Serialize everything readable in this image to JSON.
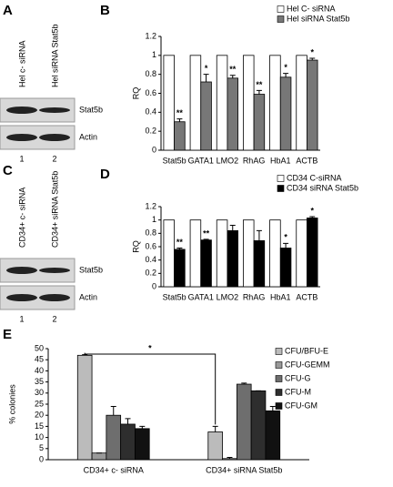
{
  "blots": [
    {
      "panel": "A",
      "lanes": [
        "Hel c- siRNA",
        "Hel siRNA Stat5b"
      ],
      "bands": [
        "Stat5b",
        "Actin"
      ],
      "lane_numbers": [
        "1",
        "2"
      ]
    },
    {
      "panel": "C",
      "lanes": [
        "CD34+ c- siRNA",
        "CD34+ siRNA Stat5b"
      ],
      "bands": [
        "Stat5b",
        "Actin"
      ],
      "lane_numbers": [
        "1",
        "2"
      ]
    }
  ],
  "chart_data": [
    {
      "panel": "B",
      "type": "bar",
      "ylabel": "RQ",
      "categories": [
        "Stat5b",
        "GATA1",
        "LMO2",
        "RhAG",
        "HbA1",
        "ACTB"
      ],
      "series": [
        {
          "name": "Hel C- siRNA",
          "color": "#ffffff",
          "values": [
            1,
            1,
            1,
            1,
            1,
            1
          ]
        },
        {
          "name": "Hel siRNA Stat5b",
          "color": "#777777",
          "values": [
            0.3,
            0.72,
            0.76,
            0.59,
            0.77,
            0.95
          ],
          "errors": [
            0.03,
            0.08,
            0.03,
            0.04,
            0.04,
            0.02
          ]
        }
      ],
      "annotations": [
        "**",
        "*",
        "**",
        "**",
        "*",
        "*"
      ],
      "ylim": [
        0,
        1.2
      ],
      "yticks": [
        0,
        0.2,
        0.4,
        0.6,
        0.8,
        1,
        1.2
      ]
    },
    {
      "panel": "D",
      "type": "bar",
      "ylabel": "RQ",
      "categories": [
        "Stat5b",
        "GATA1",
        "LMO2",
        "RhAG",
        "HbA1",
        "ACTB"
      ],
      "series": [
        {
          "name": "CD34 C-siRNA",
          "color": "#ffffff",
          "values": [
            1,
            1,
            1,
            1,
            1,
            1
          ]
        },
        {
          "name": "CD34 siRNA Stat5b",
          "color": "#000000",
          "values": [
            0.56,
            0.7,
            0.84,
            0.69,
            0.58,
            1.03
          ],
          "errors": [
            0.02,
            0.01,
            0.08,
            0.15,
            0.07,
            0.02
          ]
        }
      ],
      "annotations": [
        "**",
        "**",
        null,
        null,
        "*",
        "*"
      ],
      "ylim": [
        0,
        1.2
      ],
      "yticks": [
        0,
        0.2,
        0.4,
        0.6,
        0.8,
        1,
        1.2
      ]
    },
    {
      "panel": "E",
      "type": "bar",
      "ylabel": "% colonies",
      "categories": [
        "CD34+ c- siRNA",
        "CD34+ siRNA Stat5b"
      ],
      "series": [
        {
          "name": "CFU/BFU-E",
          "color": "#bbbbbb",
          "values": [
            47,
            12.5
          ],
          "errors": [
            0.3,
            2.5
          ]
        },
        {
          "name": "CFU-GEMM",
          "color": "#999999",
          "values": [
            3,
            0.5
          ],
          "errors": [
            0,
            0.5
          ]
        },
        {
          "name": "CFU-G",
          "color": "#6e6e6e",
          "values": [
            20,
            34
          ],
          "errors": [
            4,
            0.5
          ]
        },
        {
          "name": "CFU-M",
          "color": "#2e2e2e",
          "values": [
            16,
            31
          ],
          "errors": [
            2.5,
            0
          ]
        },
        {
          "name": "CFU-GM",
          "color": "#111111",
          "values": [
            14,
            22
          ],
          "errors": [
            1,
            2
          ]
        }
      ],
      "significance": "*",
      "ylim": [
        0,
        50
      ],
      "yticks": [
        0,
        5,
        10,
        15,
        20,
        25,
        30,
        35,
        40,
        45,
        50
      ]
    }
  ]
}
